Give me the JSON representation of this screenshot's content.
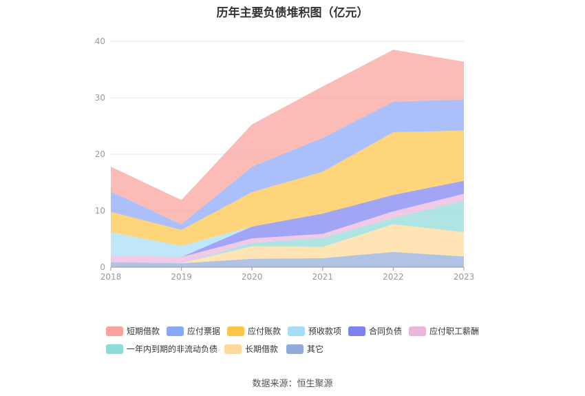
{
  "title": "历年主要负债堆积图（亿元）",
  "source": "数据来源：恒生聚源",
  "chart_data": {
    "type": "area",
    "stacked": true,
    "title": "历年主要负债堆积图（亿元）",
    "categories": [
      "2018",
      "2019",
      "2020",
      "2021",
      "2022",
      "2023"
    ],
    "ylim": [
      0,
      40
    ],
    "yticks": [
      0,
      10,
      20,
      30,
      40
    ],
    "grid": true,
    "legend_position": "bottom",
    "series": [
      {
        "name": "其它",
        "color": "#91acdb",
        "values": [
          0.9,
          0.7,
          1.5,
          1.6,
          2.7,
          1.9
        ]
      },
      {
        "name": "长期借款",
        "color": "#ffd99a",
        "values": [
          0,
          0,
          2.2,
          2.0,
          4.9,
          4.3
        ]
      },
      {
        "name": "一年内到期的非流动负债",
        "color": "#8fdbd8",
        "values": [
          0,
          0,
          0.6,
          1.6,
          1.1,
          5.6
        ]
      },
      {
        "name": "应付职工薪酬",
        "color": "#eab6dc",
        "values": [
          1.2,
          1.1,
          0.8,
          0.7,
          1.2,
          1.2
        ]
      },
      {
        "name": "合同负债",
        "color": "#7e82f0",
        "values": [
          0,
          0,
          2.1,
          3.6,
          2.9,
          2.3
        ]
      },
      {
        "name": "预收款项",
        "color": "#a6dcf7",
        "values": [
          4.1,
          2.0,
          0,
          0,
          0,
          0
        ]
      },
      {
        "name": "应付账款",
        "color": "#ffc54a",
        "values": [
          3.6,
          2.8,
          6.1,
          7.4,
          11.1,
          8.9
        ]
      },
      {
        "name": "应付票据",
        "color": "#8aa8f8",
        "values": [
          3.6,
          1.0,
          4.5,
          6.0,
          5.4,
          5.5
        ]
      },
      {
        "name": "短期借款",
        "color": "#f9a29b",
        "values": [
          4.4,
          4.3,
          7.5,
          9.1,
          9.2,
          6.7
        ]
      }
    ],
    "legend_order": [
      "短期借款",
      "应付票据",
      "应付账款",
      "预收款项",
      "合同负债",
      "应付职工薪酬",
      "一年内到期的非流动负债",
      "长期借款",
      "其它"
    ]
  }
}
